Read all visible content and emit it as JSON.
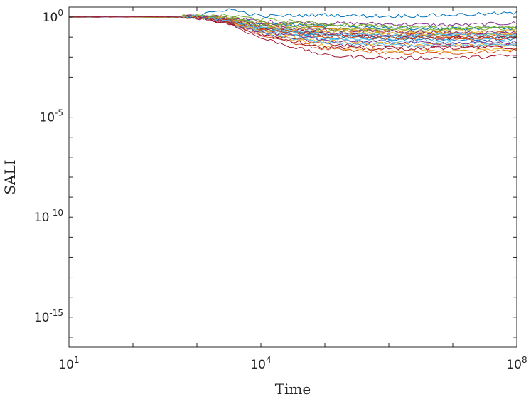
{
  "chart_data": {
    "type": "line",
    "title": "",
    "xlabel": "Time",
    "ylabel": "SALI",
    "x_scale": "log",
    "y_scale": "log",
    "xlim": [
      10,
      100000000
    ],
    "ylim": [
      3.16e-17,
      3.16
    ],
    "x_ticks": [
      {
        "value": 10,
        "base": "10",
        "exp": "1"
      },
      {
        "value": 10000,
        "base": "10",
        "exp": "4"
      },
      {
        "value": 100000000,
        "base": "10",
        "exp": "8"
      }
    ],
    "y_ticks": [
      {
        "value": 1,
        "base": "10",
        "exp": "0"
      },
      {
        "value": 1e-05,
        "base": "10",
        "exp": "-5"
      },
      {
        "value": 1e-10,
        "base": "10",
        "exp": "-10"
      },
      {
        "value": 1e-15,
        "base": "10",
        "exp": "-15"
      }
    ],
    "grid": false,
    "legend": "none",
    "series_colors": [
      "#0072BD",
      "#D95319",
      "#EDB120",
      "#7E2F8E",
      "#77AC30",
      "#4DBEEE",
      "#A2142F"
    ],
    "series": [
      {
        "x": [
          10,
          300,
          1000,
          3000,
          10000,
          100000,
          1000000,
          10000000,
          100000000
        ],
        "y": [
          1.1,
          1.1,
          1.0,
          0.6,
          0.28,
          0.12,
          0.1,
          0.11,
          0.1
        ]
      },
      {
        "x": [
          10,
          300,
          1000,
          3000,
          10000,
          100000,
          1000000,
          10000000,
          100000000
        ],
        "y": [
          1.0,
          1.05,
          1.05,
          0.55,
          0.12,
          0.025,
          0.016,
          0.016,
          0.022
        ]
      },
      {
        "x": [
          10,
          300,
          1000,
          3000,
          10000,
          100000,
          1000000,
          10000000,
          100000000
        ],
        "y": [
          1.05,
          1.1,
          1.05,
          0.8,
          0.4,
          0.3,
          0.22,
          0.2,
          0.2
        ]
      },
      {
        "x": [
          10,
          300,
          1000,
          3000,
          10000,
          100000,
          1000000,
          10000000,
          100000000
        ],
        "y": [
          1.0,
          1.05,
          1.1,
          1.0,
          0.6,
          0.5,
          0.45,
          0.4,
          0.5
        ]
      },
      {
        "x": [
          10,
          300,
          1000,
          3000,
          10000,
          100000,
          1000000,
          10000000,
          100000000
        ],
        "y": [
          1.0,
          1.1,
          1.0,
          0.7,
          0.28,
          0.18,
          0.14,
          0.12,
          0.13
        ]
      },
      {
        "x": [
          10,
          300,
          1000,
          3000,
          10000,
          100000,
          1000000,
          10000000,
          100000000
        ],
        "y": [
          1.1,
          1.05,
          1.0,
          0.75,
          0.25,
          0.08,
          0.06,
          0.05,
          0.055
        ]
      },
      {
        "x": [
          10,
          300,
          1000,
          3000,
          10000,
          100000,
          1000000,
          10000000,
          100000000
        ],
        "y": [
          1.0,
          1.1,
          1.05,
          0.55,
          0.15,
          0.045,
          0.035,
          0.035,
          0.04
        ]
      },
      {
        "x": [
          10,
          300,
          1000,
          3000,
          10000,
          100000,
          1000000,
          10000000,
          100000000
        ],
        "y": [
          1.05,
          1.0,
          1.05,
          0.85,
          0.3,
          0.1,
          0.08,
          0.07,
          0.075
        ]
      },
      {
        "x": [
          10,
          300,
          1000,
          3000,
          10000,
          100000,
          1000000,
          10000000,
          100000000
        ],
        "y": [
          1.0,
          1.05,
          1.1,
          0.9,
          0.5,
          0.28,
          0.18,
          0.17,
          0.16
        ]
      },
      {
        "x": [
          10,
          300,
          1000,
          3000,
          10000,
          100000,
          1000000,
          10000000,
          100000000
        ],
        "y": [
          1.1,
          1.0,
          1.0,
          0.6,
          0.18,
          0.035,
          0.02,
          0.02,
          0.025
        ]
      },
      {
        "x": [
          10,
          300,
          1000,
          3000,
          10000,
          100000,
          1000000,
          10000000,
          100000000
        ],
        "y": [
          1.0,
          1.1,
          1.05,
          0.8,
          0.35,
          0.22,
          0.2,
          0.17,
          0.18
        ]
      },
      {
        "x": [
          10,
          300,
          1000,
          3000,
          10000,
          100000,
          1000000,
          10000000,
          100000000
        ],
        "y": [
          1.05,
          1.05,
          1.1,
          1.2,
          0.8,
          0.45,
          0.32,
          0.28,
          0.3
        ]
      },
      {
        "x": [
          10,
          300,
          1000,
          3000,
          10000,
          100000,
          1000000,
          10000000,
          100000000
        ],
        "y": [
          1.0,
          1.05,
          1.0,
          0.65,
          0.22,
          0.09,
          0.08,
          0.075,
          0.085
        ]
      },
      {
        "x": [
          10,
          300,
          1000,
          3000,
          10000,
          100000,
          1000000,
          10000000,
          100000000
        ],
        "y": [
          1.1,
          1.0,
          0.95,
          0.5,
          0.09,
          0.012,
          0.009,
          0.009,
          0.012
        ]
      },
      {
        "x": [
          10,
          300,
          1000,
          3000,
          10000,
          100000,
          1000000,
          10000000,
          100000000
        ],
        "y": [
          1.0,
          1.1,
          1.05,
          0.9,
          0.45,
          0.35,
          0.3,
          0.26,
          0.28
        ]
      },
      {
        "x": [
          10,
          300,
          1000,
          3000,
          10000,
          100000,
          1000000,
          10000000,
          100000000
        ],
        "y": [
          1.05,
          1.0,
          1.05,
          0.7,
          0.25,
          0.13,
          0.12,
          0.11,
          0.12
        ]
      },
      {
        "x": [
          10,
          300,
          1000,
          3000,
          10000,
          100000,
          1000000,
          10000000,
          100000000
        ],
        "y": [
          1.0,
          1.05,
          1.05,
          0.6,
          0.2,
          0.06,
          0.045,
          0.04,
          0.04
        ]
      },
      {
        "x": [
          10,
          300,
          1000,
          3000,
          10000,
          100000,
          1000000,
          10000000,
          100000000
        ],
        "y": [
          1.1,
          1.1,
          1.0,
          0.85,
          0.4,
          0.16,
          0.13,
          0.14,
          0.15
        ]
      },
      {
        "x": [
          10,
          300,
          1000,
          3000,
          10000,
          100000,
          1000000,
          10000000,
          100000000
        ],
        "y": [
          1.0,
          1.05,
          1.05,
          0.95,
          0.55,
          0.4,
          0.35,
          0.3,
          0.32
        ]
      },
      {
        "x": [
          10,
          300,
          1000,
          3000,
          10000,
          100000,
          1000000,
          10000000,
          100000000
        ],
        "y": [
          1.05,
          1.05,
          1.0,
          0.55,
          0.16,
          0.05,
          0.04,
          0.035,
          0.045
        ]
      },
      {
        "x": [
          10,
          300,
          1000,
          3000,
          10000,
          100000,
          1000000,
          10000000,
          100000000
        ],
        "y": [
          1.0,
          1.1,
          1.0,
          0.75,
          0.3,
          0.14,
          0.1,
          0.09,
          0.1
        ]
      },
      {
        "x": [
          10,
          300,
          1000,
          3000,
          10000,
          100000,
          1000000,
          10000000,
          100000000
        ],
        "y": [
          1.1,
          1.05,
          1.1,
          2.6,
          1.1,
          1.3,
          1.1,
          1.3,
          1.6
        ]
      },
      {
        "x": [
          10,
          300,
          1000,
          3000,
          10000,
          100000,
          1000000,
          10000000,
          100000000
        ],
        "y": [
          1.0,
          1.0,
          1.05,
          0.65,
          0.24,
          0.11,
          0.09,
          0.085,
          0.09
        ]
      },
      {
        "x": [
          10,
          300,
          1000,
          3000,
          10000,
          100000,
          1000000,
          10000000,
          100000000
        ],
        "y": [
          1.05,
          1.1,
          1.05,
          0.8,
          0.33,
          0.2,
          0.16,
          0.15,
          0.16
        ]
      },
      {
        "x": [
          10,
          300,
          1000,
          3000,
          10000,
          100000,
          1000000,
          10000000,
          100000000
        ],
        "y": [
          1.0,
          1.05,
          1.0,
          0.6,
          0.18,
          0.07,
          0.055,
          0.05,
          0.055
        ]
      },
      {
        "x": [
          10,
          300,
          1000,
          3000,
          10000,
          100000,
          1000000,
          10000000,
          100000000
        ],
        "y": [
          1.1,
          1.0,
          1.05,
          0.9,
          0.42,
          0.26,
          0.22,
          0.24,
          0.26
        ]
      },
      {
        "x": [
          10,
          300,
          1000,
          3000,
          10000,
          100000,
          1000000,
          10000000,
          100000000
        ],
        "y": [
          1.0,
          1.1,
          1.1,
          0.7,
          0.27,
          0.15,
          0.12,
          0.13,
          0.14
        ]
      },
      {
        "x": [
          10,
          300,
          1000,
          3000,
          10000,
          100000,
          1000000,
          10000000,
          100000000
        ],
        "y": [
          1.05,
          1.05,
          1.0,
          0.5,
          0.14,
          0.03,
          0.025,
          0.03,
          0.03
        ]
      }
    ]
  }
}
